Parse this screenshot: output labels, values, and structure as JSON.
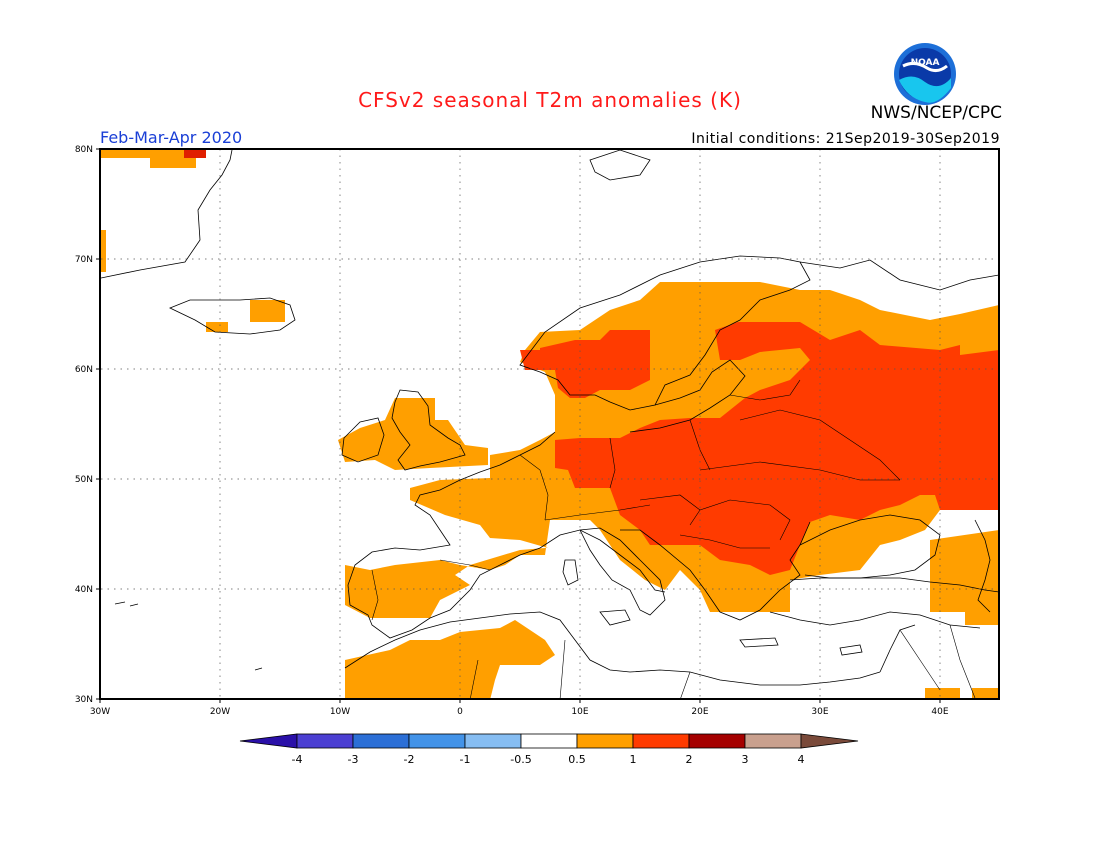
{
  "header": {
    "title": "CFSv2 seasonal T2m anomalies (K)",
    "agency": "NWS/NCEP/CPC",
    "period": "Feb-Mar-Apr 2020",
    "initial_conditions": "Initial conditions: 21Sep2019-30Sep2019",
    "logo_text": "NOAA"
  },
  "map": {
    "region": "Europe",
    "lon_range": [
      -30,
      45
    ],
    "lat_range": [
      30,
      80
    ],
    "lat_labels": [
      "30N",
      "40N",
      "50N",
      "60N",
      "70N",
      "80N"
    ],
    "lon_labels": [
      "30W",
      "20W",
      "10W",
      "0",
      "10E",
      "20E",
      "30E",
      "40E"
    ],
    "grid": "dotted"
  },
  "legend": {
    "labels": [
      "-4",
      "-3",
      "-2",
      "-1",
      "-0.5",
      "0.5",
      "1",
      "2",
      "3",
      "4"
    ],
    "colors": [
      "#2a10a8",
      "#4b3fd2",
      "#2c6fd6",
      "#4393e8",
      "#86bdf2",
      "#ffffff",
      "#ff9f00",
      "#ff3b00",
      "#a50000",
      "#c9a08e",
      "#7a4a3a"
    ]
  },
  "colors": {
    "anom_low": "#ff9f00",
    "anom_high": "#ff3b00",
    "anom_extreme": "#e01f00",
    "coast": "#000000"
  }
}
